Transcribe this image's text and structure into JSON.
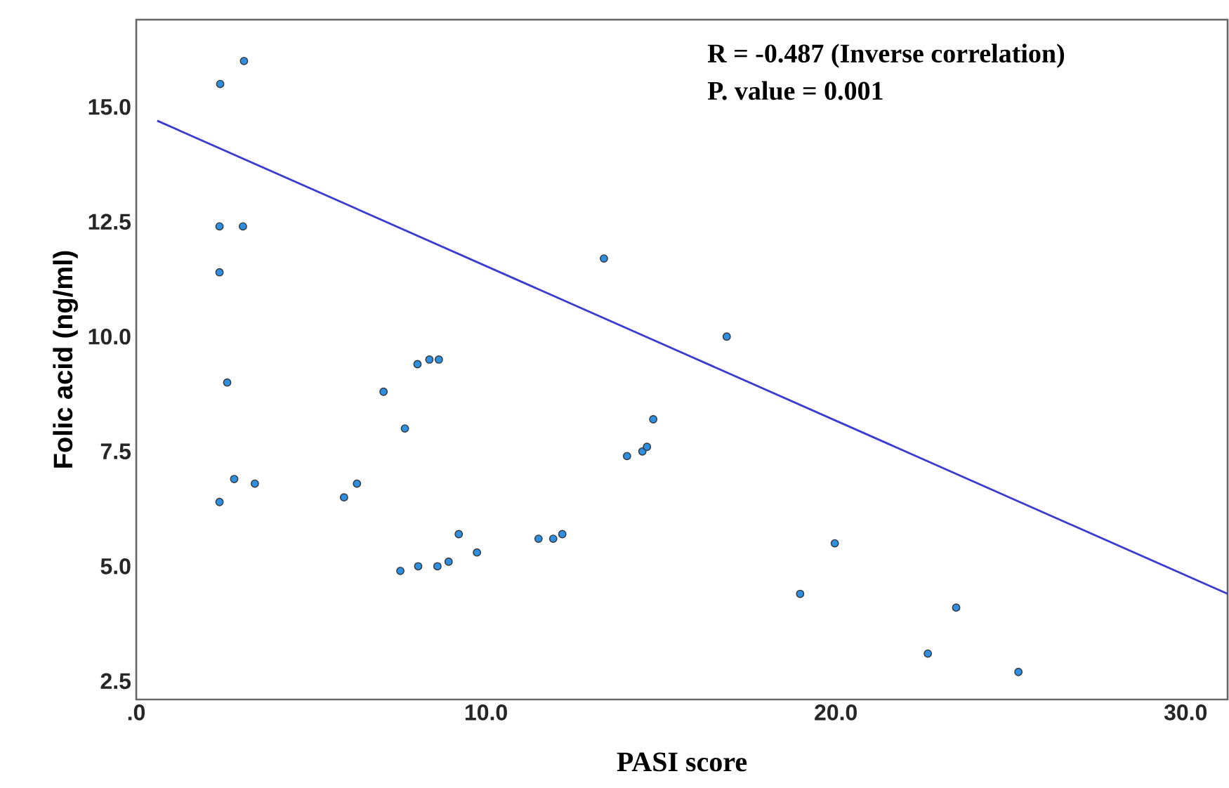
{
  "chart_data": {
    "type": "scatter",
    "xlabel": "PASI score",
    "ylabel": "Folic acid (ng/ml)",
    "annotations": [
      "R = -0.487 (Inverse correlation)",
      "P. value = 0.001"
    ],
    "xlim": [
      0,
      31.2
    ],
    "ylim": [
      2.1,
      16.9
    ],
    "xticks": [
      {
        "value": 0,
        "label": ".0"
      },
      {
        "value": 10,
        "label": "10.0"
      },
      {
        "value": 20,
        "label": "20.0"
      },
      {
        "value": 30,
        "label": "30.0"
      }
    ],
    "yticks": [
      {
        "value": 2.5,
        "label": "2.5"
      },
      {
        "value": 5,
        "label": "5.0"
      },
      {
        "value": 7.5,
        "label": "7.5"
      },
      {
        "value": 10,
        "label": "10.0"
      },
      {
        "value": 12.5,
        "label": "12.5"
      },
      {
        "value": 15,
        "label": "15.0"
      }
    ],
    "grid": false,
    "series": [
      {
        "color": "#2e8fe0",
        "marker": "circle",
        "x": [
          2.4,
          3.08,
          2.38,
          3.05,
          2.38,
          13.37,
          2.6,
          7.07,
          8.04,
          8.38,
          8.65,
          7.68,
          2.8,
          3.39,
          2.38,
          5.94,
          6.31,
          7.55,
          8.06,
          8.61,
          8.93,
          9.22,
          9.74,
          11.5,
          11.92,
          12.18,
          16.88,
          14.78,
          14.03,
          14.47,
          14.6,
          19.97,
          18.98,
          23.44,
          22.63,
          25.22
        ],
        "values": [
          15.5,
          16.0,
          12.4,
          12.4,
          11.4,
          11.7,
          9.0,
          8.8,
          9.4,
          9.5,
          9.5,
          8.0,
          6.9,
          6.8,
          6.4,
          6.5,
          6.8,
          4.9,
          5.0,
          5.0,
          5.1,
          5.7,
          5.3,
          5.6,
          5.6,
          5.7,
          10.0,
          8.2,
          7.4,
          7.5,
          7.6,
          5.5,
          4.4,
          4.1,
          3.1,
          2.7
        ]
      },
      {
        "type": "line",
        "color": "#3b3bd0",
        "marker": "none",
        "x": [
          0.6,
          31.2
        ],
        "values": [
          14.7,
          4.4
        ]
      }
    ]
  }
}
